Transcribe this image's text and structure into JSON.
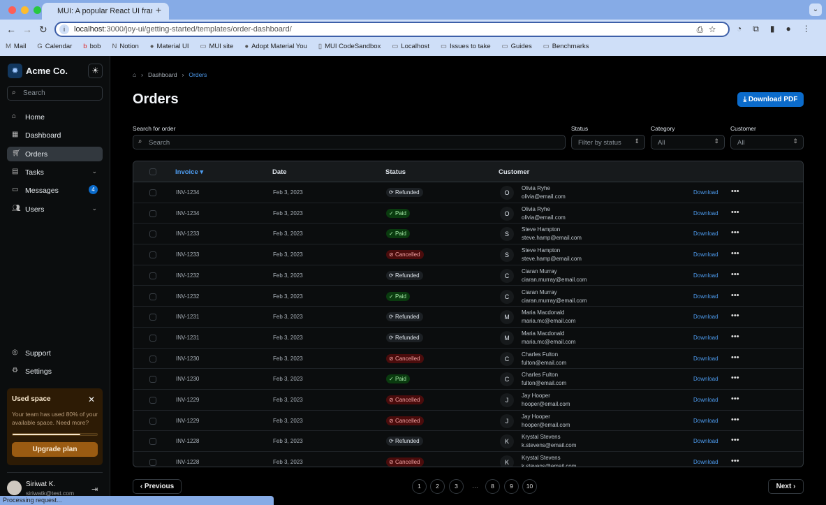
{
  "browser": {
    "tab_title": "MUI: A popular React UI fram",
    "url_host": "localhost",
    "url_path": ":3000/joy-ui/getting-started/templates/order-dashboard/",
    "bookmarks": [
      "Mail",
      "Calendar",
      "bob",
      "Notion",
      "Material UI",
      "MUI site",
      "Adopt Material You",
      "MUI CodeSandbox",
      "Localhost",
      "Issues to take",
      "Guides",
      "Benchmarks"
    ],
    "status_text": "Processing request..."
  },
  "sidebar": {
    "brand": "Acme Co.",
    "search_placeholder": "Search",
    "items": [
      {
        "label": "Home",
        "icon": "home-icon"
      },
      {
        "label": "Dashboard",
        "icon": "dashboard-icon"
      },
      {
        "label": "Orders",
        "icon": "cart-icon",
        "active": true
      },
      {
        "label": "Tasks",
        "icon": "clipboard-icon"
      },
      {
        "label": "Messages",
        "icon": "chat-icon",
        "badge": "4"
      },
      {
        "label": "Users",
        "icon": "users-icon"
      }
    ],
    "bottom_items": [
      {
        "label": "Support"
      },
      {
        "label": "Settings"
      }
    ],
    "card": {
      "title": "Used space",
      "text": "Your team has used 80% of your available space. Need more?",
      "progress_percent": 80,
      "button": "Upgrade plan"
    },
    "user": {
      "name": "Siriwat K.",
      "email": "siriwatk@test.com"
    }
  },
  "main": {
    "breadcrumbs": [
      "Dashboard",
      "Orders"
    ],
    "title": "Orders",
    "download_pdf": "Download PDF",
    "filters": {
      "search_label": "Search for order",
      "search_placeholder": "Search",
      "status_label": "Status",
      "status_placeholder": "Filter by status",
      "category_label": "Category",
      "category_value": "All",
      "customer_label": "Customer",
      "customer_value": "All"
    },
    "columns": [
      "Invoice",
      "Date",
      "Status",
      "Customer"
    ],
    "download_label": "Download",
    "rows": [
      {
        "invoice": "INV-1234",
        "date": "Feb 3, 2023",
        "status": "Refunded",
        "initial": "O",
        "name": "Olivia Ryhe",
        "email": "olivia@email.com"
      },
      {
        "invoice": "INV-1234",
        "date": "Feb 3, 2023",
        "status": "Paid",
        "initial": "O",
        "name": "Olivia Ryhe",
        "email": "olivia@email.com"
      },
      {
        "invoice": "INV-1233",
        "date": "Feb 3, 2023",
        "status": "Paid",
        "initial": "S",
        "name": "Steve Hampton",
        "email": "steve.hamp@email.com"
      },
      {
        "invoice": "INV-1233",
        "date": "Feb 3, 2023",
        "status": "Cancelled",
        "initial": "S",
        "name": "Steve Hampton",
        "email": "steve.hamp@email.com"
      },
      {
        "invoice": "INV-1232",
        "date": "Feb 3, 2023",
        "status": "Refunded",
        "initial": "C",
        "name": "Ciaran Murray",
        "email": "ciaran.murray@email.com"
      },
      {
        "invoice": "INV-1232",
        "date": "Feb 3, 2023",
        "status": "Paid",
        "initial": "C",
        "name": "Ciaran Murray",
        "email": "ciaran.murray@email.com"
      },
      {
        "invoice": "INV-1231",
        "date": "Feb 3, 2023",
        "status": "Refunded",
        "initial": "M",
        "name": "Maria Macdonald",
        "email": "maria.mc@email.com"
      },
      {
        "invoice": "INV-1231",
        "date": "Feb 3, 2023",
        "status": "Refunded",
        "initial": "M",
        "name": "Maria Macdonald",
        "email": "maria.mc@email.com"
      },
      {
        "invoice": "INV-1230",
        "date": "Feb 3, 2023",
        "status": "Cancelled",
        "initial": "C",
        "name": "Charles Fulton",
        "email": "fulton@email.com"
      },
      {
        "invoice": "INV-1230",
        "date": "Feb 3, 2023",
        "status": "Paid",
        "initial": "C",
        "name": "Charles Fulton",
        "email": "fulton@email.com"
      },
      {
        "invoice": "INV-1229",
        "date": "Feb 3, 2023",
        "status": "Cancelled",
        "initial": "J",
        "name": "Jay Hooper",
        "email": "hooper@email.com"
      },
      {
        "invoice": "INV-1229",
        "date": "Feb 3, 2023",
        "status": "Cancelled",
        "initial": "J",
        "name": "Jay Hooper",
        "email": "hooper@email.com"
      },
      {
        "invoice": "INV-1228",
        "date": "Feb 3, 2023",
        "status": "Refunded",
        "initial": "K",
        "name": "Krystal Stevens",
        "email": "k.stevens@email.com"
      },
      {
        "invoice": "INV-1228",
        "date": "Feb 3, 2023",
        "status": "Cancelled",
        "initial": "K",
        "name": "Krystal Stevens",
        "email": "k.stevens@email.com"
      }
    ],
    "pagination": {
      "previous": "Previous",
      "next": "Next",
      "pages": [
        "1",
        "2",
        "3",
        "8",
        "9",
        "10"
      ],
      "ellipsis": "…"
    }
  },
  "colors": {
    "accent": "#0b6bcb",
    "paid": "#a6e9a8",
    "cancelled": "#f3a4a4",
    "warning_card": "#2d1b05"
  }
}
